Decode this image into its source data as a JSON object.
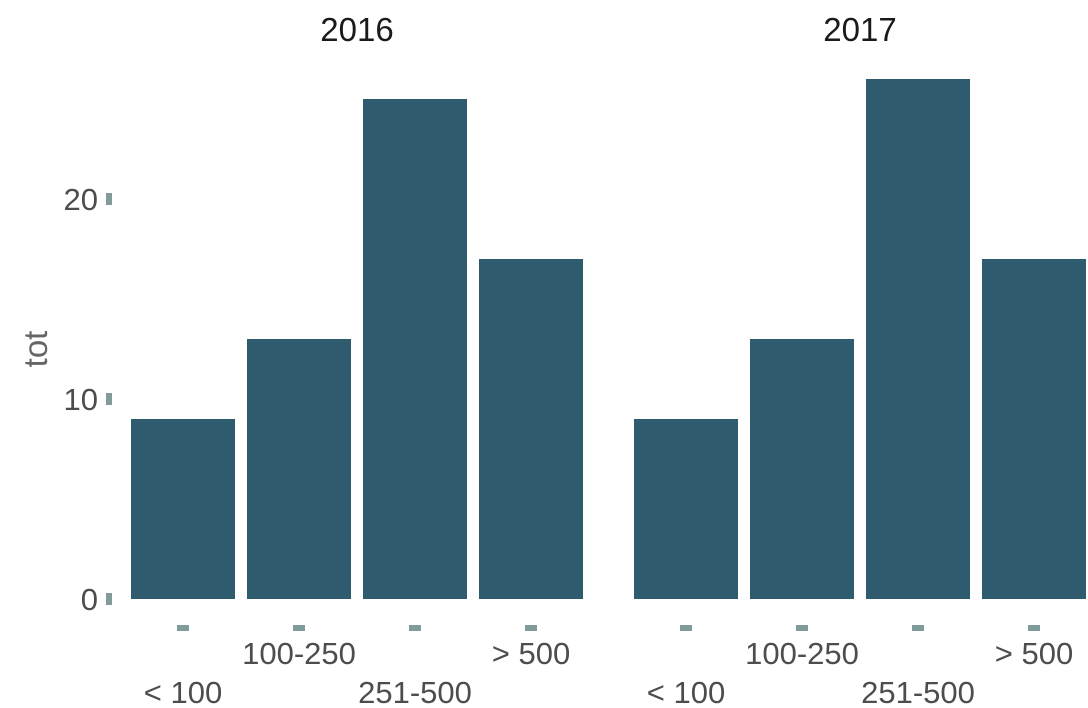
{
  "chart_data": {
    "type": "bar",
    "facet_by": "year",
    "ylabel": "tot",
    "xlabel": "",
    "ylim": [
      0,
      26
    ],
    "y_ticks": [
      0,
      10,
      20
    ],
    "grid": false,
    "legend": "none",
    "categories": [
      "< 100",
      "100-250",
      "251-500",
      "> 500"
    ],
    "panels": [
      {
        "title": "2016",
        "values": [
          9,
          13,
          25,
          17
        ]
      },
      {
        "title": "2017",
        "values": [
          9,
          13,
          26,
          17
        ]
      }
    ],
    "colors": {
      "bar": "#2f5b6f",
      "tick": "#7f9c9a",
      "tick_label": "#4d4d4d",
      "axis_title": "#666666",
      "facet_title": "#1a1a1a"
    }
  }
}
